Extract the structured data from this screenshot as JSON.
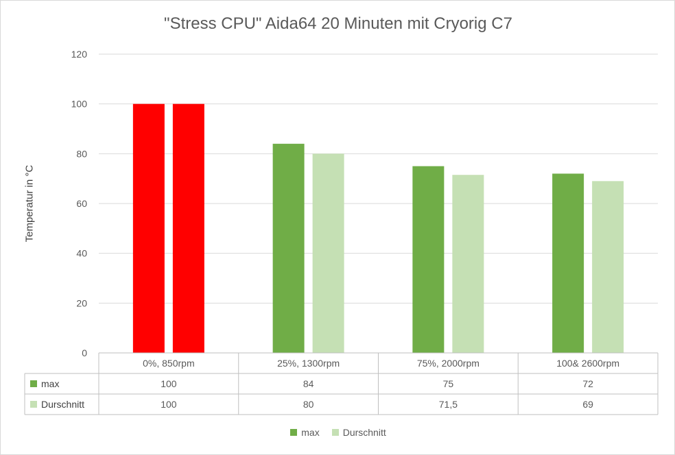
{
  "chart_data": {
    "type": "bar",
    "title": "\"Stress CPU\" Aida64 20 Minuten mit Cryorig C7",
    "ylabel": "Temperatur in °C",
    "xlabel": "",
    "ylim": [
      0,
      120
    ],
    "yticks": [
      0,
      20,
      40,
      60,
      80,
      100,
      120
    ],
    "grid": true,
    "legend": "bottom",
    "categories": [
      "0%, 850rpm",
      "25%, 1300rpm",
      "75%, 2000rpm",
      "100& 2600rpm"
    ],
    "series": [
      {
        "name": "max",
        "values": [
          100,
          84,
          75,
          72
        ],
        "labels": [
          "100",
          "84",
          "75",
          "72"
        ],
        "color": "#70ad47"
      },
      {
        "name": "Durschnitt",
        "values": [
          100,
          80,
          71.5,
          69
        ],
        "labels": [
          "100",
          "80",
          "71,5",
          "69"
        ],
        "color": "#c5e0b4"
      }
    ],
    "highlight": {
      "category_index": 0,
      "color": "#ff0000"
    },
    "data_table": true
  }
}
